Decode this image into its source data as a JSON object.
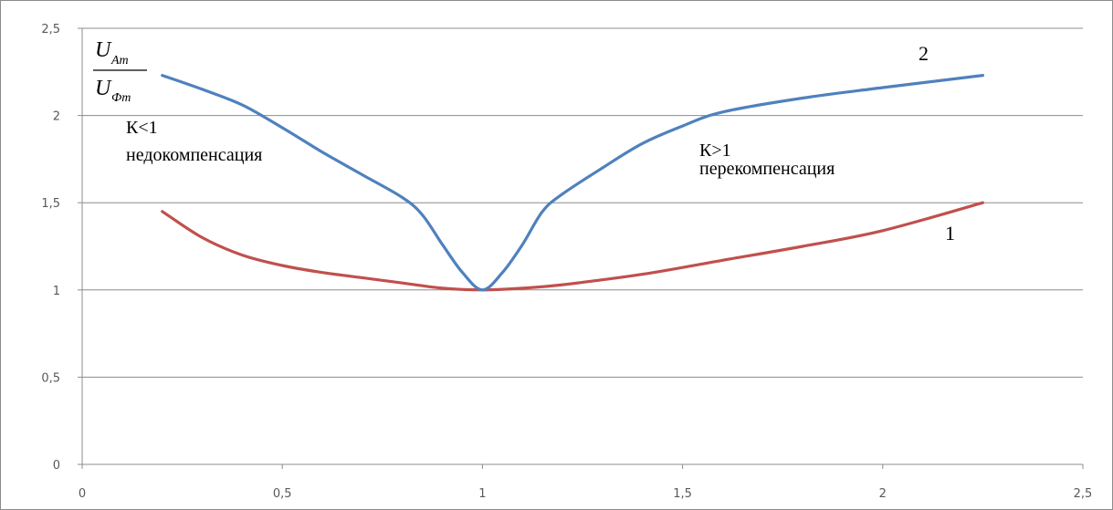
{
  "chart_data": {
    "type": "line",
    "xlim": [
      0,
      2.5
    ],
    "ylim": [
      0,
      2.5
    ],
    "x_ticks": [
      "0",
      "0,5",
      "1",
      "1,5",
      "2",
      "2,5"
    ],
    "y_ticks": [
      "0",
      "0,5",
      "1",
      "1,5",
      "2",
      "2,5"
    ],
    "grid": "horizontal",
    "ylabel": {
      "numerator": "U",
      "numerator_sub": "Am",
      "denominator": "U",
      "denominator_sub": "Фm"
    },
    "annotations": [
      {
        "line1": "К<1",
        "line2": "недокомпенсация"
      },
      {
        "line1": "К>1",
        "line2": "перекомпенсация"
      }
    ],
    "series": [
      {
        "label": "1",
        "color": "#c0504d",
        "points": [
          [
            0.2,
            1.45
          ],
          [
            0.3,
            1.3
          ],
          [
            0.4,
            1.2
          ],
          [
            0.5,
            1.14
          ],
          [
            0.6,
            1.1
          ],
          [
            0.7,
            1.07
          ],
          [
            0.8,
            1.04
          ],
          [
            0.9,
            1.01
          ],
          [
            1.0,
            1.0
          ],
          [
            1.1,
            1.01
          ],
          [
            1.2,
            1.03
          ],
          [
            1.4,
            1.09
          ],
          [
            1.6,
            1.17
          ],
          [
            1.8,
            1.25
          ],
          [
            2.0,
            1.34
          ],
          [
            2.25,
            1.5
          ]
        ]
      },
      {
        "label": "2",
        "color": "#4f81bd",
        "points": [
          [
            0.2,
            2.23
          ],
          [
            0.3,
            2.15
          ],
          [
            0.4,
            2.06
          ],
          [
            0.5,
            1.93
          ],
          [
            0.6,
            1.79
          ],
          [
            0.7,
            1.66
          ],
          [
            0.8,
            1.53
          ],
          [
            0.85,
            1.43
          ],
          [
            0.9,
            1.26
          ],
          [
            0.95,
            1.1
          ],
          [
            1.0,
            1.0
          ],
          [
            1.05,
            1.1
          ],
          [
            1.1,
            1.26
          ],
          [
            1.15,
            1.45
          ],
          [
            1.2,
            1.55
          ],
          [
            1.3,
            1.7
          ],
          [
            1.4,
            1.84
          ],
          [
            1.5,
            1.94
          ],
          [
            1.6,
            2.02
          ],
          [
            1.8,
            2.1
          ],
          [
            2.0,
            2.16
          ],
          [
            2.25,
            2.23
          ]
        ]
      }
    ]
  }
}
